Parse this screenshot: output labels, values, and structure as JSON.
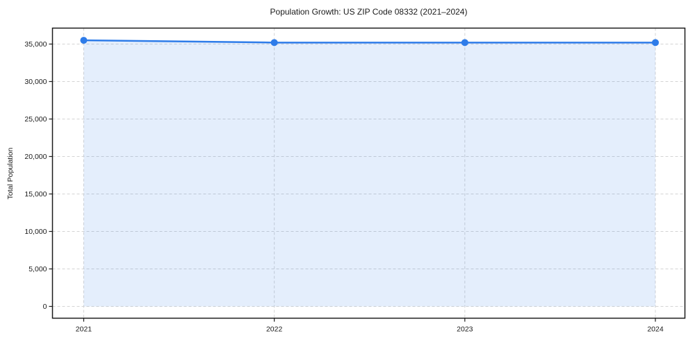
{
  "chart_data": {
    "type": "area",
    "title": "Population Growth: US ZIP Code 08332 (2021–2024)",
    "xlabel": "",
    "ylabel": "Total Population",
    "x": [
      2021,
      2022,
      2023,
      2024
    ],
    "categories": [
      "2021",
      "2022",
      "2023",
      "2024"
    ],
    "series": [
      {
        "name": "Total Population",
        "values": [
          35500,
          35200,
          35200,
          35200
        ]
      }
    ],
    "baseline": 0,
    "xlim": [
      2020.836,
      2024.155
    ],
    "ylim": [
      -1574,
      37128
    ],
    "xticks": [
      2021,
      2022,
      2023,
      2024
    ],
    "xtick_labels": [
      "2021",
      "2022",
      "2023",
      "2024"
    ],
    "yticks": [
      0,
      5000,
      10000,
      15000,
      20000,
      25000,
      30000,
      35000
    ],
    "ytick_labels": [
      "0",
      "5,000",
      "10,000",
      "15,000",
      "20,000",
      "25,000",
      "30,000",
      "35,000"
    ],
    "grid": true,
    "grid_style": "dashed",
    "legend": null,
    "colors": {
      "line": "#2e7ce9",
      "marker": "#2e7ce9",
      "fill": "rgba(46,124,233,0.13)",
      "grid": "#d4d4d4",
      "spine": "#1a1a1a",
      "text": "#1a1a1a",
      "background": "#ffffff"
    }
  }
}
